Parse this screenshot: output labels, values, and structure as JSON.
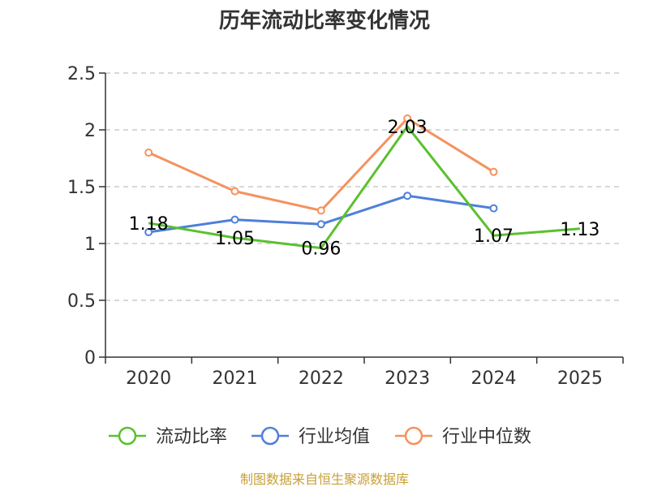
{
  "chart_data": {
    "type": "line",
    "title": "历年流动比率变化情况",
    "categories": [
      "2020",
      "2021",
      "2022",
      "2023",
      "2024",
      "2025"
    ],
    "ylim": [
      0,
      2.5
    ],
    "yticks": [
      "0",
      "0.5",
      "1",
      "1.5",
      "2",
      "2.5"
    ],
    "ytick_values": [
      0,
      0.5,
      1,
      1.5,
      2,
      2.5
    ],
    "grid": true,
    "legend_position": "bottom",
    "series": [
      {
        "name": "流动比率",
        "color": "#5ac12f",
        "values": [
          1.18,
          1.05,
          0.96,
          2.03,
          1.07,
          1.13
        ],
        "labels": [
          "1.18",
          "1.05",
          "0.96",
          "2.03",
          "1.07",
          "1.13"
        ],
        "show_markers": false
      },
      {
        "name": "行业均值",
        "color": "#4f7fd9",
        "values": [
          1.1,
          1.21,
          1.17,
          1.42,
          1.31,
          null
        ],
        "show_markers": true
      },
      {
        "name": "行业中位数",
        "color": "#f4925e",
        "values": [
          1.8,
          1.46,
          1.29,
          2.1,
          1.63,
          null
        ],
        "show_markers": true
      }
    ]
  },
  "source": {
    "text": "制图数据来自恒生聚源数据库",
    "color": "#c8a037"
  }
}
